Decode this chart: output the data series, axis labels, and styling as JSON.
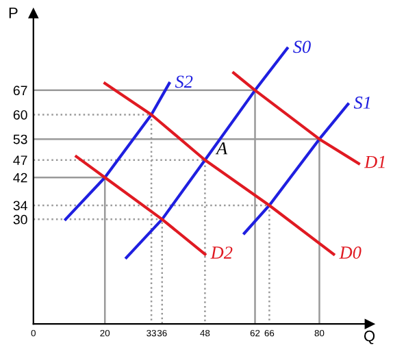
{
  "chart_data": {
    "type": "line",
    "xlabel": "Q",
    "ylabel": "P",
    "xlim": [
      0,
      94
    ],
    "ylim": [
      0,
      89
    ],
    "xticks": [
      0,
      20,
      33,
      36,
      48,
      62,
      66,
      80
    ],
    "yticks": [
      30,
      34,
      42,
      47,
      53,
      60,
      67
    ],
    "grid": false,
    "legend": false,
    "marker": "none",
    "annotations": [
      {
        "text": "A",
        "x": 48,
        "y": 47
      }
    ],
    "series": [
      {
        "name": "S0",
        "color": "#1f1fe0",
        "line_style": "solid",
        "x": [
          26,
          36,
          48,
          62,
          71
        ],
        "values": [
          19,
          30,
          47,
          67,
          79
        ]
      },
      {
        "name": "S1",
        "color": "#1f1fe0",
        "line_style": "solid",
        "x": [
          59,
          66,
          80,
          88
        ],
        "values": [
          26,
          34,
          53,
          63
        ]
      },
      {
        "name": "S2",
        "color": "#1f1fe0",
        "line_style": "solid",
        "x": [
          9,
          20,
          33,
          38
        ],
        "values": [
          30,
          42,
          60,
          69
        ]
      },
      {
        "name": "D0",
        "color": "#e01a22",
        "line_style": "solid",
        "x": [
          20,
          33,
          48,
          66,
          84
        ],
        "values": [
          69,
          60,
          47,
          34,
          20
        ]
      },
      {
        "name": "D1",
        "color": "#e01a22",
        "line_style": "solid",
        "x": [
          56,
          62,
          80,
          91
        ],
        "values": [
          72,
          67,
          53,
          46
        ]
      },
      {
        "name": "D2",
        "color": "#e01a22",
        "line_style": "solid",
        "x": [
          12,
          20,
          36,
          48
        ],
        "values": [
          48,
          42,
          30,
          20
        ]
      },
      {
        "color": "#999999",
        "line_style": "solid",
        "x": [
          0,
          62,
          62
        ],
        "values": [
          67,
          67,
          0
        ]
      },
      {
        "color": "#999999",
        "line_style": "dotted",
        "x": [
          0,
          33,
          33
        ],
        "values": [
          60,
          60,
          0
        ]
      },
      {
        "color": "#999999",
        "line_style": "solid",
        "x": [
          0,
          80,
          80
        ],
        "values": [
          53,
          53,
          0
        ]
      },
      {
        "color": "#999999",
        "line_style": "dotted",
        "x": [
          0,
          48,
          48
        ],
        "values": [
          47,
          47,
          0
        ]
      },
      {
        "color": "#999999",
        "line_style": "solid",
        "x": [
          0,
          20,
          20
        ],
        "values": [
          42,
          42,
          0
        ]
      },
      {
        "color": "#999999",
        "line_style": "dotted",
        "x": [
          0,
          66,
          66
        ],
        "values": [
          34,
          34,
          0
        ]
      },
      {
        "color": "#999999",
        "line_style": "dotted",
        "x": [
          0,
          36,
          36
        ],
        "values": [
          30,
          30,
          0
        ]
      }
    ]
  }
}
